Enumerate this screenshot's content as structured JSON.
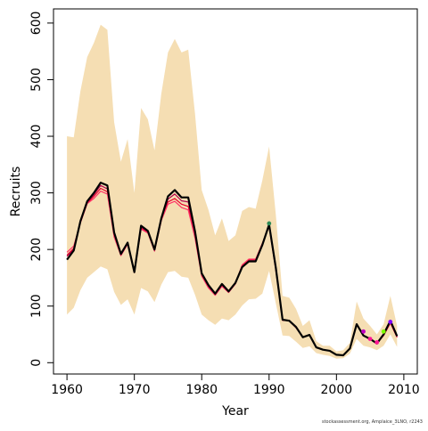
{
  "chart_data": {
    "type": "line",
    "title": "",
    "xlabel": "Year",
    "ylabel": "Recruits",
    "xlim": [
      1958,
      2012
    ],
    "ylim": [
      -20,
      625
    ],
    "xticks": [
      1960,
      1970,
      1980,
      1990,
      2000,
      2010
    ],
    "yticks": [
      0,
      100,
      200,
      300,
      400,
      500,
      600
    ],
    "grid": false,
    "legend": "none",
    "colors": {
      "band": "#f5deb3",
      "main": "#000000",
      "reds": [
        "#e4002b",
        "#ff3366",
        "#b0004a"
      ],
      "points": [
        "#c000c0",
        "#7cfc00",
        "#ff1493"
      ]
    },
    "x": [
      1960,
      1961,
      1962,
      1963,
      1964,
      1965,
      1966,
      1967,
      1968,
      1969,
      1970,
      1971,
      1972,
      1973,
      1974,
      1975,
      1976,
      1977,
      1978,
      1979,
      1980,
      1981,
      1982,
      1983,
      1984,
      1985,
      1986,
      1987,
      1988,
      1989,
      1990,
      1991,
      1992,
      1993,
      1994,
      1995,
      1996,
      1997,
      1998,
      1999,
      2000,
      2001,
      2002,
      2003,
      2004,
      2005,
      2006,
      2007,
      2008,
      2009
    ],
    "band": {
      "upper": [
        400,
        398,
        480,
        540,
        565,
        597,
        588,
        425,
        355,
        395,
        300,
        450,
        430,
        375,
        475,
        548,
        572,
        548,
        553,
        440,
        305,
        270,
        225,
        255,
        215,
        225,
        268,
        275,
        272,
        322,
        382,
        262,
        118,
        115,
        95,
        65,
        75,
        38,
        30,
        30,
        20,
        22,
        35,
        108,
        78,
        65,
        50,
        68,
        118,
        65
      ],
      "lower": [
        85,
        97,
        128,
        150,
        160,
        170,
        165,
        125,
        102,
        112,
        85,
        132,
        126,
        107,
        138,
        160,
        162,
        152,
        150,
        120,
        85,
        75,
        67,
        78,
        75,
        85,
        101,
        112,
        113,
        122,
        162,
        105,
        48,
        47,
        37,
        26,
        29,
        17,
        14,
        12,
        7,
        8,
        16,
        42,
        30,
        27,
        22,
        30,
        50,
        28
      ]
    },
    "series": [
      {
        "values": [
          182,
          198,
          250,
          285,
          300,
          318,
          313,
          230,
          192,
          212,
          160,
          242,
          233,
          200,
          255,
          294,
          305,
          292,
          292,
          232,
          158,
          137,
          122,
          139,
          126,
          141,
          169,
          179,
          179,
          208,
          244,
          168,
          76,
          74,
          63,
          45,
          49,
          27,
          23,
          21,
          14,
          13,
          25,
          68,
          48,
          42,
          34,
          50,
          74,
          47
        ]
      },
      {
        "values": [
          190,
          202,
          248,
          282,
          294,
          308,
          302,
          225,
          190,
          210,
          160,
          238,
          230,
          198,
          252,
          284,
          290,
          280,
          276,
          224,
          155,
          134,
          120,
          136,
          125,
          140,
          172,
          182,
          182,
          210,
          242,
          165,
          75,
          74,
          62,
          45,
          49,
          27,
          23,
          21,
          14,
          13,
          25,
          68,
          48,
          42,
          34,
          48,
          70,
          45
        ]
      },
      {
        "values": [
          195,
          206,
          247,
          281,
          290,
          303,
          298,
          222,
          189,
          209,
          159,
          236,
          229,
          197,
          251,
          280,
          285,
          274,
          270,
          220,
          153,
          132,
          119,
          135,
          124,
          139,
          173,
          183,
          183,
          211,
          241,
          164,
          75,
          74,
          62,
          45,
          49,
          27,
          23,
          21,
          14,
          13,
          25,
          68,
          48,
          42,
          34,
          48,
          70,
          45
        ]
      },
      {
        "values": [
          188,
          200,
          249,
          283,
          297,
          313,
          307,
          228,
          191,
          211,
          160,
          240,
          231,
          199,
          253,
          289,
          298,
          286,
          284,
          228,
          156,
          135,
          121,
          137,
          125,
          140,
          170,
          180,
          180,
          209,
          243,
          166,
          75,
          74,
          62,
          45,
          49,
          27,
          23,
          21,
          14,
          13,
          25,
          68,
          48,
          42,
          34,
          49,
          72,
          46
        ]
      }
    ],
    "points": [
      {
        "x": 1990,
        "y": 246,
        "color": "#2e8b57"
      },
      {
        "x": 2004,
        "y": 55,
        "color": "#c000c0"
      },
      {
        "x": 2005,
        "y": 42,
        "color": "#ff1493"
      },
      {
        "x": 2006,
        "y": 36,
        "color": "#ff1493"
      },
      {
        "x": 2007,
        "y": 55,
        "color": "#7cfc00"
      },
      {
        "x": 2008,
        "y": 72,
        "color": "#8000ff"
      }
    ]
  },
  "credit": "stockassessment.org, Amplaice_3LNO, r2243"
}
